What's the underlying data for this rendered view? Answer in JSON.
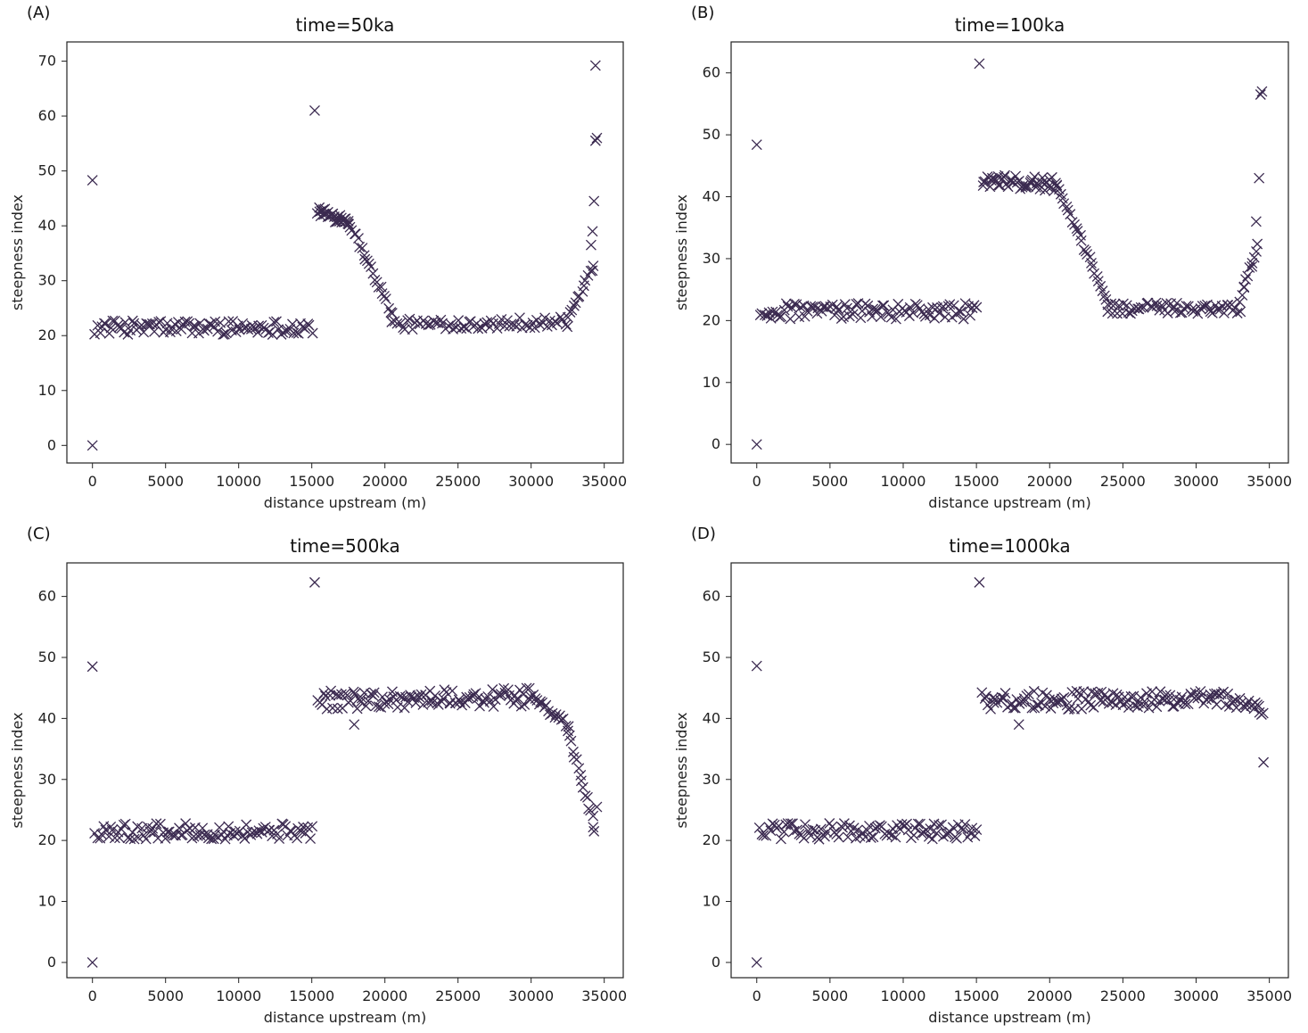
{
  "marker_color": "#3b2a50",
  "chart_data": [
    {
      "type": "scatter",
      "panel_label": "(A)",
      "title": "time=50ka",
      "xlabel": "distance upstream (m)",
      "ylabel": "steepness index",
      "xlim": [
        -1750,
        36300
      ],
      "ylim": [
        -3.2,
        73.5
      ],
      "xticks": [
        0,
        5000,
        10000,
        15000,
        20000,
        25000,
        30000,
        35000
      ],
      "yticks": [
        0,
        10,
        20,
        30,
        40,
        50,
        60,
        70
      ],
      "segments": [
        {
          "x0": 200,
          "x1": 15000,
          "y0": 21.5,
          "y1": 21.5,
          "n": 100,
          "spread": 2.6
        },
        {
          "x0": 15400,
          "x1": 17500,
          "y0": 42.5,
          "y1": 41.0,
          "n": 30,
          "spread": 2.0
        },
        {
          "x0": 17500,
          "x1": 20500,
          "y0": 41.0,
          "y1": 24.0,
          "n": 24,
          "spread": 1.2
        },
        {
          "x0": 20500,
          "x1": 32500,
          "y0": 22.0,
          "y1": 22.5,
          "n": 70,
          "spread": 2.0
        },
        {
          "x0": 32500,
          "x1": 34300,
          "y0": 23.0,
          "y1": 33.0,
          "n": 14,
          "spread": 1.0
        }
      ],
      "points": [
        [
          0,
          0
        ],
        [
          0,
          48.3
        ],
        [
          15200,
          61
        ],
        [
          34100,
          36.5
        ],
        [
          34200,
          39
        ],
        [
          34300,
          44.5
        ],
        [
          34400,
          55.5
        ],
        [
          34500,
          56
        ],
        [
          34400,
          69.2
        ]
      ]
    },
    {
      "type": "scatter",
      "panel_label": "(B)",
      "title": "time=100ka",
      "xlabel": "distance upstream (m)",
      "ylabel": "steepness index",
      "xlim": [
        -1750,
        36300
      ],
      "ylim": [
        -3,
        65
      ],
      "xticks": [
        0,
        5000,
        10000,
        15000,
        20000,
        25000,
        30000,
        35000
      ],
      "yticks": [
        0,
        10,
        20,
        30,
        40,
        50,
        60
      ],
      "segments": [
        {
          "x0": 200,
          "x1": 15000,
          "y0": 21.5,
          "y1": 21.5,
          "n": 100,
          "spread": 2.6
        },
        {
          "x0": 15400,
          "x1": 20500,
          "y0": 42.5,
          "y1": 42.0,
          "n": 50,
          "spread": 2.2
        },
        {
          "x0": 20500,
          "x1": 24000,
          "y0": 41.5,
          "y1": 23.0,
          "n": 28,
          "spread": 1.0
        },
        {
          "x0": 24000,
          "x1": 33000,
          "y0": 22.0,
          "y1": 22.0,
          "n": 60,
          "spread": 1.8
        },
        {
          "x0": 33000,
          "x1": 34200,
          "y0": 23.5,
          "y1": 32.0,
          "n": 12,
          "spread": 1.0
        }
      ],
      "points": [
        [
          0,
          0
        ],
        [
          0,
          48.4
        ],
        [
          15200,
          61.5
        ],
        [
          34100,
          36
        ],
        [
          34300,
          43
        ],
        [
          34400,
          56.5
        ],
        [
          34500,
          57
        ]
      ]
    },
    {
      "type": "scatter",
      "panel_label": "(C)",
      "title": "time=500ka",
      "xlabel": "distance upstream (m)",
      "ylabel": "steepness index",
      "xlim": [
        -1750,
        36300
      ],
      "ylim": [
        -2.5,
        65.5
      ],
      "xticks": [
        0,
        5000,
        10000,
        15000,
        20000,
        25000,
        30000,
        35000
      ],
      "yticks": [
        0,
        10,
        20,
        30,
        40,
        50,
        60
      ],
      "segments": [
        {
          "x0": 200,
          "x1": 15000,
          "y0": 21.5,
          "y1": 21.5,
          "n": 100,
          "spread": 2.6
        },
        {
          "x0": 15400,
          "x1": 30000,
          "y0": 43.0,
          "y1": 43.5,
          "n": 110,
          "spread": 3.0
        },
        {
          "x0": 30000,
          "x1": 32500,
          "y0": 43.5,
          "y1": 39.0,
          "n": 20,
          "spread": 1.2
        },
        {
          "x0": 32500,
          "x1": 34300,
          "y0": 38.0,
          "y1": 22.5,
          "n": 16,
          "spread": 1.0
        }
      ],
      "points": [
        [
          0,
          0
        ],
        [
          0,
          48.5
        ],
        [
          15200,
          62.3
        ],
        [
          34500,
          25.5
        ],
        [
          34300,
          21.5
        ],
        [
          17900,
          39
        ]
      ]
    },
    {
      "type": "scatter",
      "panel_label": "(D)",
      "title": "time=1000ka",
      "xlabel": "distance upstream (m)",
      "ylabel": "steepness index",
      "xlim": [
        -1750,
        36300
      ],
      "ylim": [
        -2.5,
        65.5
      ],
      "xticks": [
        0,
        5000,
        10000,
        15000,
        20000,
        25000,
        30000,
        35000
      ],
      "yticks": [
        0,
        10,
        20,
        30,
        40,
        50,
        60
      ],
      "segments": [
        {
          "x0": 200,
          "x1": 15000,
          "y0": 21.5,
          "y1": 21.5,
          "n": 100,
          "spread": 2.6
        },
        {
          "x0": 15400,
          "x1": 34000,
          "y0": 43.0,
          "y1": 43.0,
          "n": 140,
          "spread": 3.0
        },
        {
          "x0": 34000,
          "x1": 34600,
          "y0": 42.5,
          "y1": 40.5,
          "n": 6,
          "spread": 0.8
        }
      ],
      "points": [
        [
          0,
          0
        ],
        [
          0,
          48.6
        ],
        [
          15200,
          62.3
        ],
        [
          34600,
          32.8
        ],
        [
          17900,
          39
        ]
      ]
    }
  ]
}
